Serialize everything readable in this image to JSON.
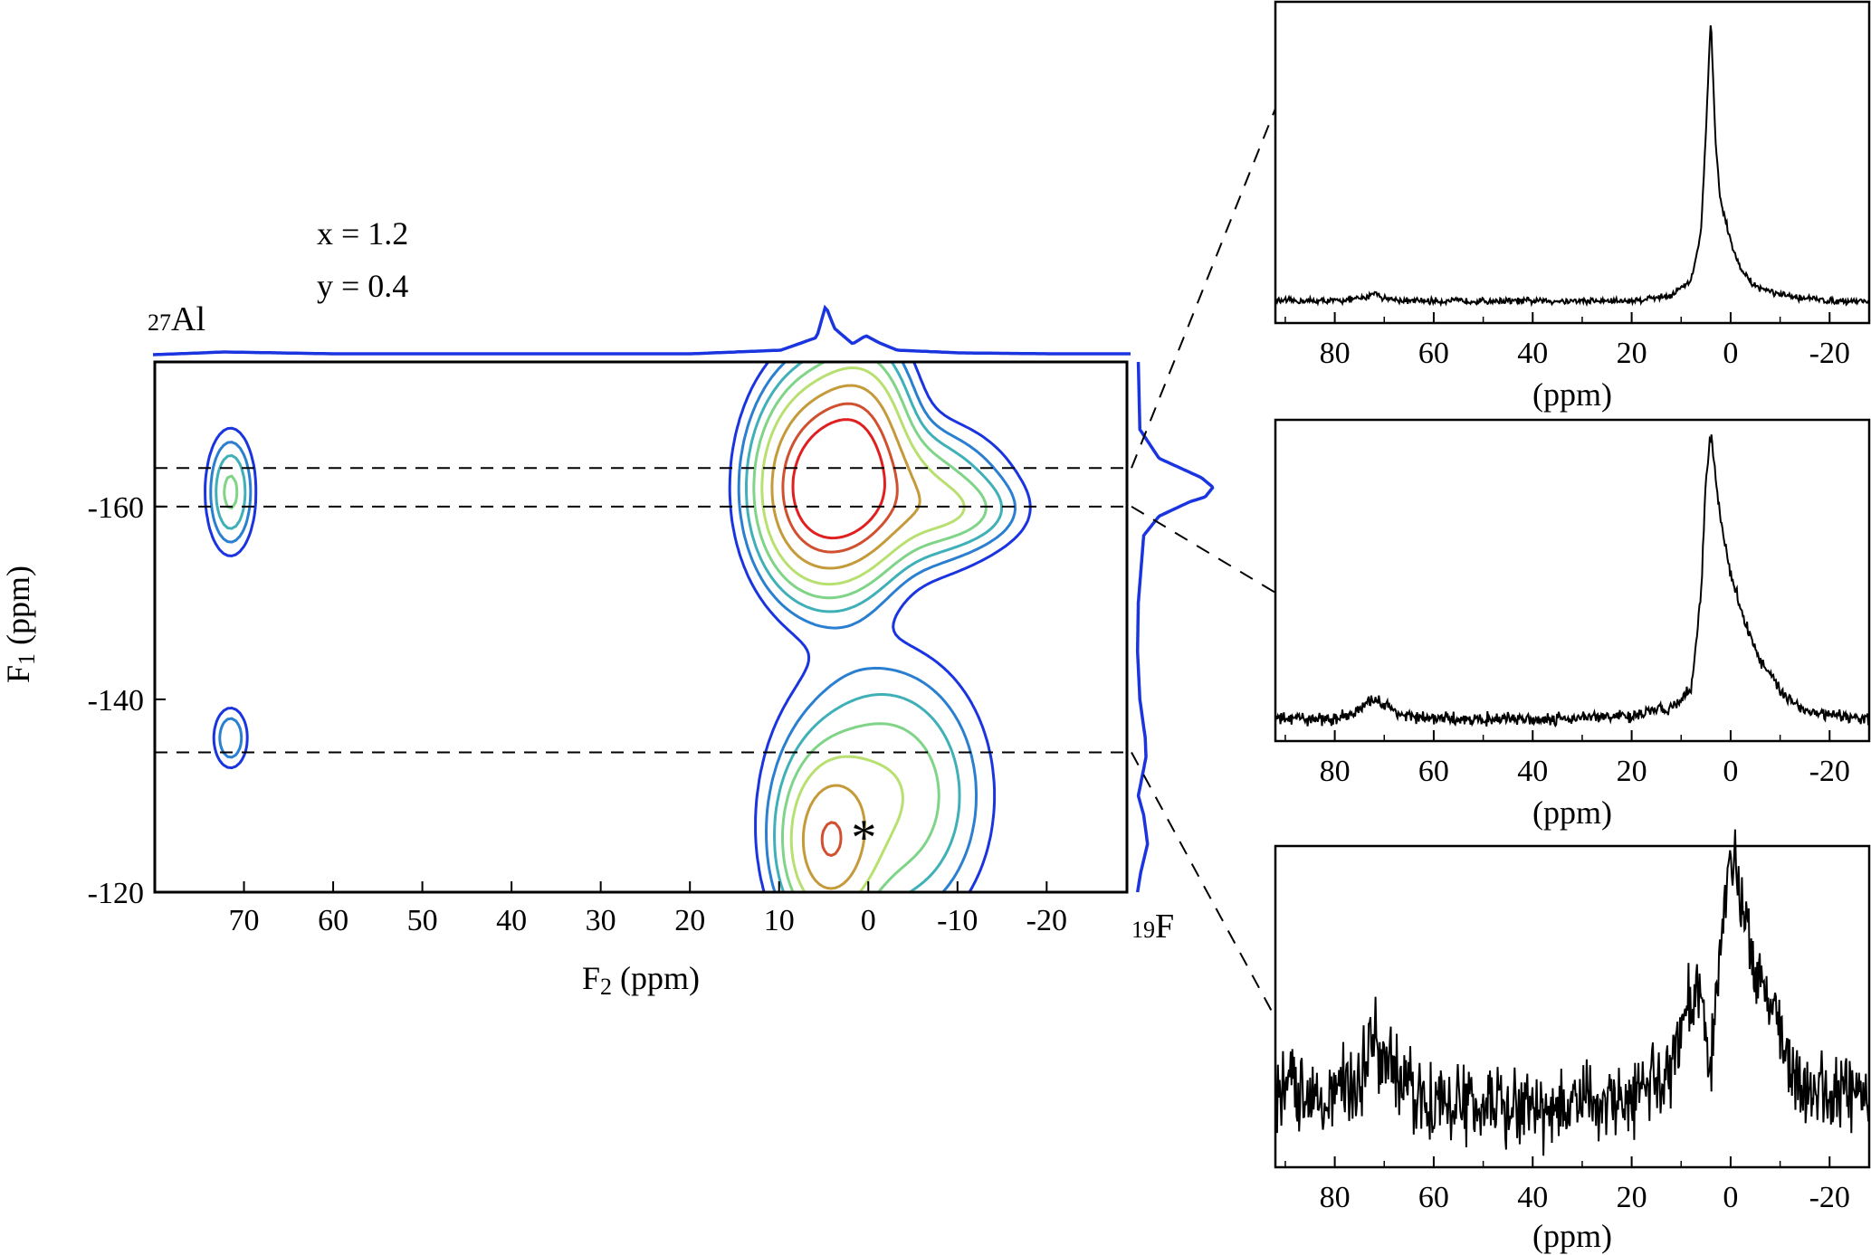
{
  "colors": {
    "projection": "#1a35e0",
    "contour_levels": [
      "#1a35e0",
      "#2a7fd0",
      "#3fb0b8",
      "#7fd488",
      "#b8e070",
      "#c49a3a",
      "#d05030",
      "#e02020"
    ],
    "spectrum": "#000000",
    "frame": "#000000"
  },
  "chart_data": [
    {
      "type": "heatmap",
      "subtype": "2D NMR contour map",
      "parameters": [
        "x = 1.2",
        "y = 0.4"
      ],
      "top_projection_label": {
        "sub": "27",
        "main": "Al"
      },
      "right_projection_label": {
        "sub": "19",
        "main": "F"
      },
      "xlabel": {
        "main": "F",
        "sub": "2",
        "rest": " (ppm)"
      },
      "ylabel": {
        "main": "F",
        "sub": "1",
        "rest": " (ppm)"
      },
      "xlim": [
        80,
        -29
      ],
      "ylim": [
        -120,
        -175
      ],
      "xticks": [
        70,
        60,
        50,
        40,
        30,
        20,
        10,
        0,
        -10,
        -20
      ],
      "xtick_labels": [
        "70",
        "60",
        "50",
        "40",
        "30",
        "20",
        "10",
        "0",
        "-10",
        "-20"
      ],
      "yticks": [
        -160,
        -140,
        -120
      ],
      "ytick_labels": [
        "-160",
        "-140",
        "-120"
      ],
      "dashed_slices_f1": [
        -164,
        -160,
        -134.5
      ],
      "annotation": {
        "text": "*",
        "x": 0.5,
        "y": -126
      },
      "peaks": [
        {
          "x": 4.5,
          "y": -162.5,
          "sx": 4.0,
          "sy": 6.0,
          "amp": 1.0
        },
        {
          "x": 0.5,
          "y": -166,
          "sx": 3.0,
          "sy": 6.0,
          "amp": 0.4
        },
        {
          "x": -4,
          "y": -161,
          "sx": 6.0,
          "sy": 4.0,
          "amp": 0.3
        },
        {
          "x": -10,
          "y": -159.5,
          "sx": 4.0,
          "sy": 2.0,
          "amp": 0.1
        },
        {
          "x": 8,
          "y": -161,
          "sx": 3.0,
          "sy": 5.0,
          "amp": 0.15
        },
        {
          "x": 4.5,
          "y": -125,
          "sx": 3.0,
          "sy": 5.0,
          "amp": 0.5
        },
        {
          "x": 0,
          "y": -130,
          "sx": 6.0,
          "sy": 8.0,
          "amp": 0.18
        },
        {
          "x": -5,
          "y": -130,
          "sx": 5.0,
          "sy": 7.0,
          "amp": 0.1
        },
        {
          "x": 71.5,
          "y": -161.5,
          "sx": 1.5,
          "sy": 3.5,
          "amp": 0.18
        },
        {
          "x": 71.5,
          "y": -136,
          "sx": 1.2,
          "sy": 2.0,
          "amp": 0.1
        }
      ],
      "contour_levels": [
        0.03,
        0.06,
        0.1,
        0.16,
        0.25,
        0.4,
        0.6,
        0.8
      ],
      "top_projection_shape": {
        "x": [
          80,
          72,
          60,
          40,
          20,
          10,
          6,
          5,
          4,
          2,
          0.5,
          -1,
          -3,
          -10,
          -20,
          -29
        ],
        "y": [
          0.01,
          0.04,
          0.02,
          0.02,
          0.02,
          0.06,
          0.2,
          0.55,
          0.3,
          0.13,
          0.22,
          0.14,
          0.06,
          0.03,
          0.02,
          0.02
        ]
      },
      "right_projection_shape": {
        "y": [
          -175,
          -168,
          -165,
          -163,
          -162,
          -161,
          -160.5,
          -159,
          -157,
          -150,
          -145,
          -140,
          -136,
          -134,
          -130,
          -128,
          -125,
          -122,
          -120
        ],
        "v": [
          0.03,
          0.05,
          0.3,
          0.85,
          1.0,
          0.9,
          0.7,
          0.3,
          0.1,
          0.03,
          0.02,
          0.05,
          0.12,
          0.13,
          0.03,
          0.1,
          0.15,
          0.06,
          0.02
        ]
      }
    },
    {
      "type": "line",
      "xlabel": "(ppm)",
      "xlim": [
        92,
        -28
      ],
      "xticks": [
        80,
        60,
        40,
        20,
        0,
        -20
      ],
      "xtick_labels": [
        "80",
        "60",
        "40",
        "20",
        "0",
        "-20"
      ],
      "series": [
        {
          "x": [
            92,
            80,
            74,
            72,
            70,
            66,
            60,
            40,
            20,
            12,
            8,
            6,
            5,
            4,
            3,
            2,
            1,
            0,
            -2,
            -5,
            -10,
            -20,
            -28
          ],
          "y": [
            0.02,
            0.02,
            0.03,
            0.05,
            0.03,
            0.02,
            0.02,
            0.02,
            0.02,
            0.04,
            0.09,
            0.25,
            0.6,
            1.0,
            0.55,
            0.36,
            0.3,
            0.22,
            0.13,
            0.07,
            0.04,
            0.02,
            0.02
          ]
        }
      ],
      "noise": 0.004
    },
    {
      "type": "line",
      "xlabel": "(ppm)",
      "xlim": [
        92,
        -28
      ],
      "xticks": [
        80,
        60,
        40,
        20,
        0,
        -20
      ],
      "xtick_labels": [
        "80",
        "60",
        "40",
        "20",
        "0",
        "-20"
      ],
      "series": [
        {
          "x": [
            92,
            80,
            75,
            72,
            70,
            66,
            60,
            40,
            20,
            12,
            8,
            6,
            5,
            4,
            2,
            0,
            -3,
            -6,
            -10,
            -15,
            -20,
            -28
          ],
          "y": [
            0.02,
            0.02,
            0.05,
            0.09,
            0.07,
            0.03,
            0.02,
            0.02,
            0.03,
            0.06,
            0.12,
            0.45,
            0.85,
            1.0,
            0.7,
            0.52,
            0.35,
            0.22,
            0.12,
            0.05,
            0.03,
            0.02
          ]
        }
      ],
      "noise": 0.008
    },
    {
      "type": "line",
      "xlabel": "(ppm)",
      "xlim": [
        92,
        -28
      ],
      "xticks": [
        80,
        60,
        40,
        20,
        0,
        -20
      ],
      "xtick_labels": [
        "80",
        "60",
        "40",
        "20",
        "0",
        "-20"
      ],
      "series": [
        {
          "x": [
            92,
            80,
            75,
            72,
            70,
            66,
            60,
            40,
            20,
            12,
            8,
            6,
            5,
            4,
            2,
            1,
            0,
            -2,
            -4,
            -6,
            -8,
            -11,
            -15,
            -20,
            -28
          ],
          "y": [
            0.22,
            0.2,
            0.25,
            0.4,
            0.3,
            0.22,
            0.17,
            0.14,
            0.17,
            0.3,
            0.52,
            0.55,
            0.4,
            0.3,
            0.72,
            0.9,
            1.0,
            0.88,
            0.72,
            0.62,
            0.52,
            0.32,
            0.22,
            0.2,
            0.22
          ]
        }
      ],
      "noise": 0.05
    }
  ]
}
